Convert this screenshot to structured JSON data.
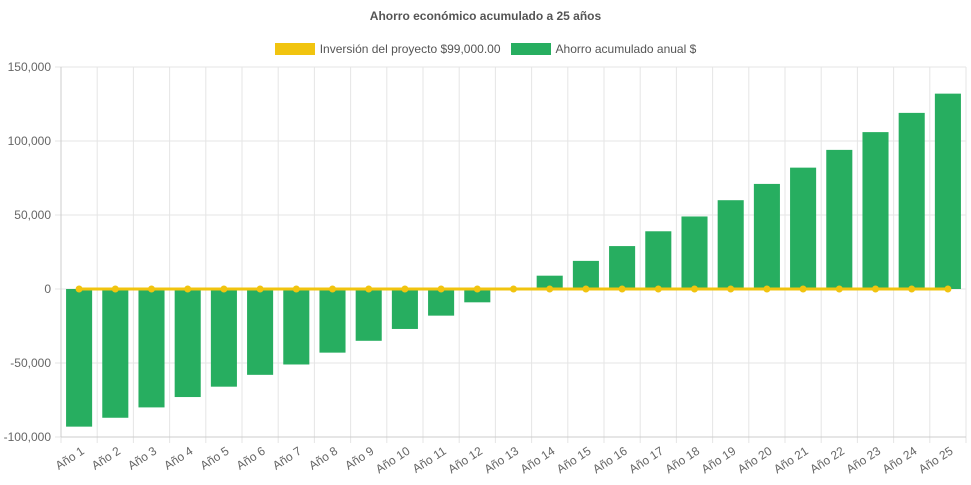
{
  "chart_data": {
    "type": "bar",
    "title": "Ahorro económico acumulado a 25 años",
    "categories": [
      "Año 1",
      "Año 2",
      "Año 3",
      "Año 4",
      "Año 5",
      "Año 6",
      "Año 7",
      "Año 8",
      "Año 9",
      "Año 10",
      "Año 11",
      "Año 12",
      "Año 13",
      "Año 14",
      "Año 15",
      "Año 16",
      "Año 17",
      "Año 18",
      "Año 19",
      "Año 20",
      "Año 21",
      "Año 22",
      "Año 23",
      "Año 24",
      "Año 25"
    ],
    "series": [
      {
        "name": "Inversión del proyecto $99,000.00",
        "type": "line",
        "color": "#f1c40f",
        "values": [
          0,
          0,
          0,
          0,
          0,
          0,
          0,
          0,
          0,
          0,
          0,
          0,
          0,
          0,
          0,
          0,
          0,
          0,
          0,
          0,
          0,
          0,
          0,
          0,
          0
        ]
      },
      {
        "name": "Ahorro acumulado anual $",
        "type": "bar",
        "color": "#27ae60",
        "values": [
          -93000,
          -87000,
          -80000,
          -73000,
          -66000,
          -58000,
          -51000,
          -43000,
          -35000,
          -27000,
          -18000,
          -9000,
          0,
          9000,
          19000,
          29000,
          39000,
          49000,
          60000,
          71000,
          82000,
          94000,
          106000,
          119000,
          132000
        ]
      }
    ],
    "ylim": [
      -100000,
      150000
    ],
    "yticks": [
      "150,000",
      "100,000",
      "50,000",
      "0",
      "-50,000",
      "-100,000"
    ],
    "ytick_values": [
      150000,
      100000,
      50000,
      0,
      -50000,
      -100000
    ],
    "grid": true,
    "legend_position": "top-center"
  }
}
